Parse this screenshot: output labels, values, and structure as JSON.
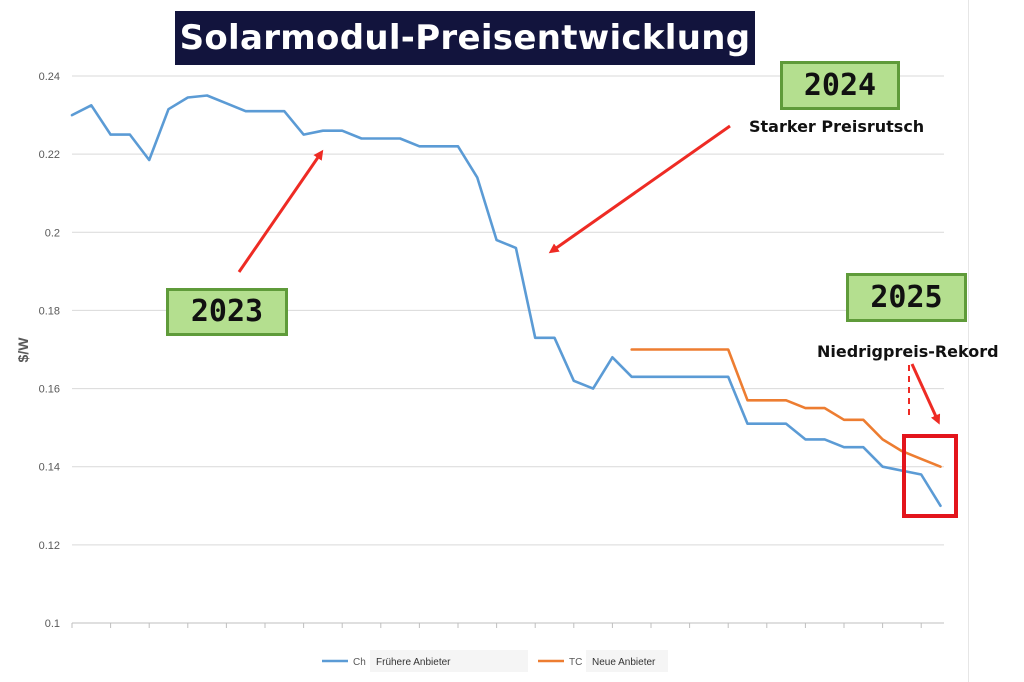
{
  "title": "Solarmodul-Preisentwicklung",
  "annotations": {
    "y2023": "2023",
    "y2024": "2024",
    "y2025": "2025",
    "drop": "Starker Preisrutsch",
    "record": "Niedrigpreis-Rekord"
  },
  "colors": {
    "series_1": "#5b9bd5",
    "series_2": "#ed7d31",
    "arrow": "#ee2b24",
    "highlight_box": "#e3151c",
    "title_bg": "#12143d",
    "label_bg": "#b4df8f",
    "label_border": "#5f9b3a"
  },
  "chart_data": {
    "type": "line",
    "title": "Solarmodul-Preisentwicklung",
    "xlabel": "",
    "ylabel": "$/W",
    "ylim": [
      0.1,
      0.24
    ],
    "yticks": [
      0.1,
      0.12,
      0.14,
      0.16,
      0.18,
      0.2,
      0.22,
      0.24
    ],
    "ytick_labels": [
      "0.1",
      "0.12",
      "0.14",
      "0.16",
      "0.18",
      "0.2",
      "0.22",
      "0.24"
    ],
    "x": [
      1,
      2,
      3,
      4,
      5,
      6,
      7,
      8,
      9,
      10,
      11,
      12,
      13,
      14,
      15,
      16,
      17,
      18,
      19,
      20,
      21,
      22,
      23,
      24,
      25,
      26,
      27,
      28,
      29,
      30,
      31,
      32,
      33,
      34,
      35,
      36,
      37,
      38,
      39,
      40,
      41,
      42,
      43,
      44,
      45,
      46,
      47
    ],
    "grid": "horizontal",
    "legend_position": "bottom",
    "series": [
      {
        "name": "Frühere Anbieter",
        "legend_prefix": "Ch",
        "values": [
          0.23,
          0.2325,
          0.225,
          0.225,
          0.2185,
          0.2315,
          0.2345,
          0.235,
          0.233,
          0.231,
          0.231,
          0.231,
          0.225,
          0.226,
          0.226,
          0.224,
          0.224,
          0.224,
          0.222,
          0.222,
          0.222,
          0.214,
          0.198,
          0.196,
          0.173,
          0.173,
          0.162,
          0.16,
          0.168,
          0.163,
          0.163,
          0.163,
          0.163,
          0.163,
          0.163,
          0.151,
          0.151,
          0.151,
          0.147,
          0.147,
          0.145,
          0.145,
          0.14,
          0.139,
          0.138,
          0.13,
          null
        ]
      },
      {
        "name": "Neue Anbieter",
        "legend_prefix": "TC",
        "values": [
          null,
          null,
          null,
          null,
          null,
          null,
          null,
          null,
          null,
          null,
          null,
          null,
          null,
          null,
          null,
          null,
          null,
          null,
          null,
          null,
          null,
          null,
          null,
          null,
          null,
          null,
          null,
          null,
          null,
          0.17,
          0.17,
          0.17,
          0.17,
          0.17,
          0.17,
          0.157,
          0.157,
          0.157,
          0.155,
          0.155,
          0.152,
          0.152,
          0.147,
          0.144,
          0.142,
          0.14,
          null
        ]
      }
    ]
  }
}
